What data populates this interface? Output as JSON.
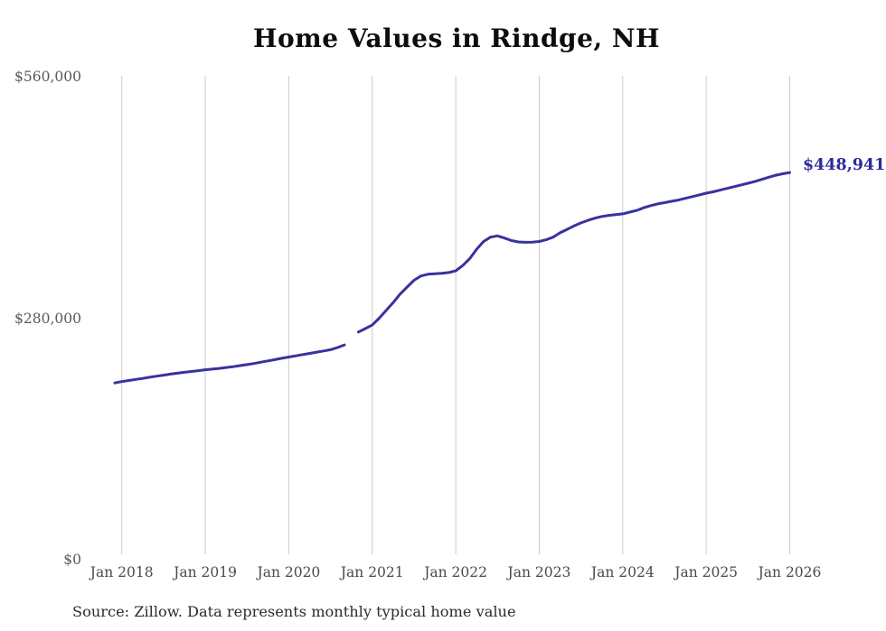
{
  "chart": {
    "title": "Home Values in Rindge, NH",
    "end_label": "$448,941",
    "source_note": "Source: Zillow. Data represents monthly typical home value"
  },
  "chart_data": {
    "type": "line",
    "title": "Home Values in Rindge, NH",
    "xlabel": "",
    "ylabel": "",
    "ylim": [
      0,
      560000
    ],
    "grid": "vertical-only",
    "legend": "none",
    "line_color": "#38329e",
    "grid_color": "#cccccc",
    "end_label": {
      "text": "$448,941",
      "value": 448941,
      "color": "#2c2a9c"
    },
    "y_ticks": [
      {
        "label": "$0",
        "value": 0
      },
      {
        "label": "$280,000",
        "value": 280000
      },
      {
        "label": "$560,000",
        "value": 560000
      }
    ],
    "x_tick_labels": [
      "Jan 2018",
      "Jan 2019",
      "Jan 2020",
      "Jan 2021",
      "Jan 2022",
      "Jan 2023",
      "Jan 2024",
      "Jan 2025",
      "Jan 2026"
    ],
    "x": [
      "2017-12",
      "2018-01",
      "2018-02",
      "2018-03",
      "2018-04",
      "2018-05",
      "2018-06",
      "2018-07",
      "2018-08",
      "2018-09",
      "2018-10",
      "2018-11",
      "2018-12",
      "2019-01",
      "2019-02",
      "2019-03",
      "2019-04",
      "2019-05",
      "2019-06",
      "2019-07",
      "2019-08",
      "2019-09",
      "2019-10",
      "2019-11",
      "2019-12",
      "2020-01",
      "2020-02",
      "2020-03",
      "2020-04",
      "2020-05",
      "2020-06",
      "2020-07",
      "2020-08",
      "2020-09",
      "2020-10",
      "2020-11",
      "2020-12",
      "2021-01",
      "2021-02",
      "2021-03",
      "2021-04",
      "2021-05",
      "2021-06",
      "2021-07",
      "2021-08",
      "2021-09",
      "2021-10",
      "2021-11",
      "2021-12",
      "2022-01",
      "2022-02",
      "2022-03",
      "2022-04",
      "2022-05",
      "2022-06",
      "2022-07",
      "2022-08",
      "2022-09",
      "2022-10",
      "2022-11",
      "2022-12",
      "2023-01",
      "2023-02",
      "2023-03",
      "2023-04",
      "2023-05",
      "2023-06",
      "2023-07",
      "2023-08",
      "2023-09",
      "2023-10",
      "2023-11",
      "2023-12",
      "2024-01",
      "2024-02",
      "2024-03",
      "2024-04",
      "2024-05",
      "2024-06",
      "2024-07",
      "2024-08",
      "2024-09",
      "2024-10",
      "2024-11",
      "2024-12",
      "2025-01",
      "2025-02",
      "2025-03",
      "2025-04",
      "2025-05",
      "2025-06",
      "2025-07",
      "2025-08",
      "2025-09",
      "2025-10",
      "2025-11",
      "2025-12",
      "2026-01"
    ],
    "series": [
      {
        "name": "Monthly typical home value",
        "values": [
          205000,
          206500,
          207800,
          209000,
          210200,
          211500,
          212800,
          214000,
          215200,
          216300,
          217300,
          218200,
          219200,
          220200,
          221000,
          221800,
          222800,
          223800,
          225000,
          226200,
          227500,
          229000,
          230500,
          232000,
          233500,
          235000,
          236400,
          237800,
          239200,
          240600,
          242000,
          243500,
          246000,
          249000,
          null,
          264000,
          268000,
          272000,
          280000,
          289000,
          298000,
          308000,
          316000,
          324000,
          329000,
          331000,
          331500,
          332000,
          333000,
          335000,
          341000,
          349000,
          360000,
          369000,
          374000,
          375500,
          373000,
          370000,
          368500,
          368000,
          368200,
          369000,
          371000,
          374000,
          379000,
          383000,
          387000,
          390500,
          393500,
          396000,
          398000,
          399200,
          400100,
          401000,
          403000,
          405000,
          408000,
          410500,
          412500,
          414000,
          415500,
          417000,
          419000,
          421000,
          423000,
          425000,
          426500,
          428500,
          430500,
          432500,
          434500,
          436500,
          438500,
          441000,
          443500,
          445800,
          447500,
          448941
        ]
      }
    ],
    "data_gap_months": [
      "2020-10"
    ]
  }
}
